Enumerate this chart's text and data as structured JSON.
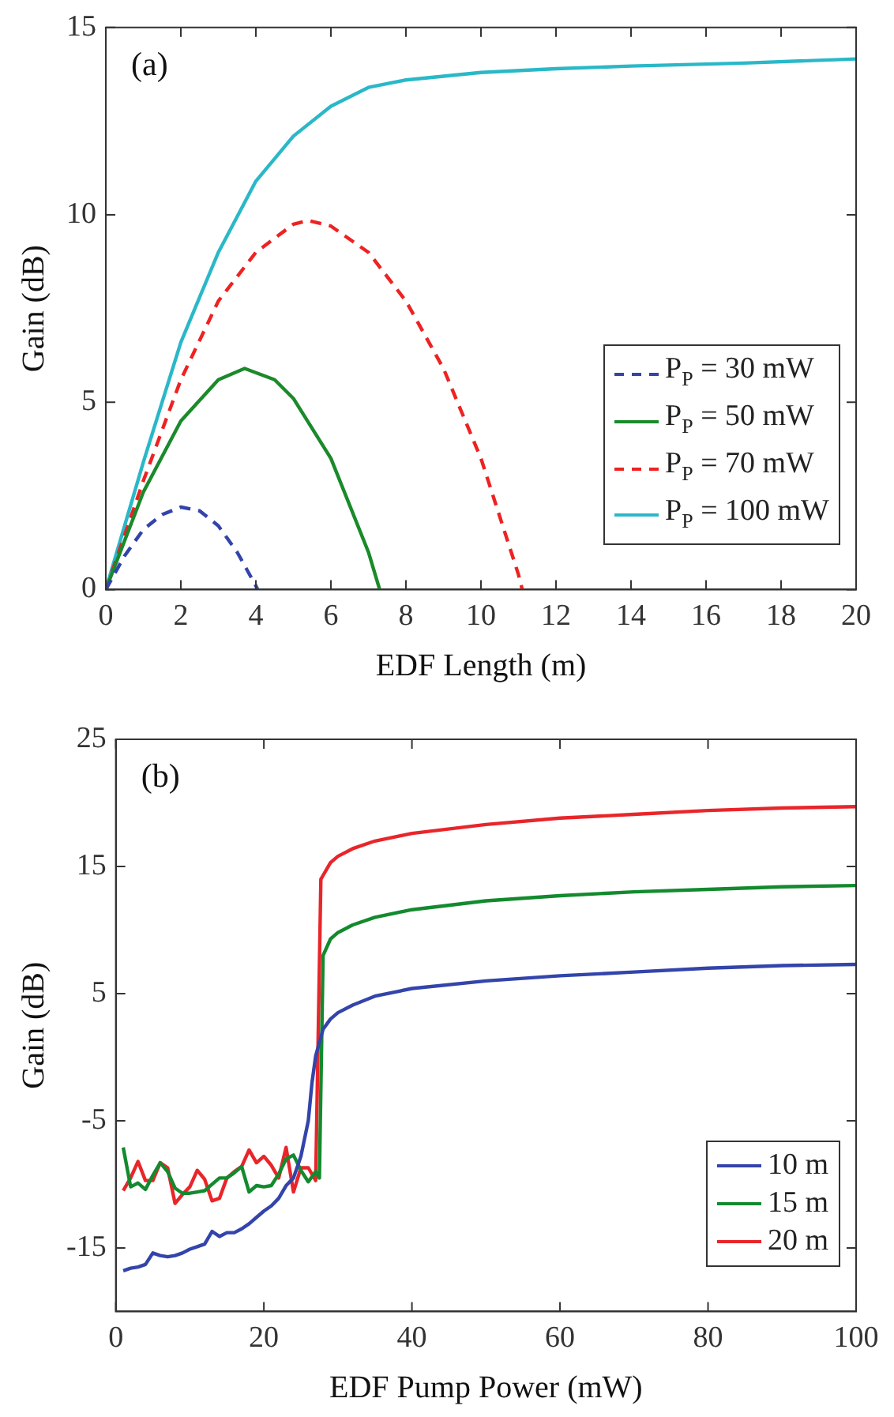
{
  "chart_data": [
    {
      "type": "line",
      "xlabel": "EDF Length (m)",
      "ylabel": "Gain (dB)",
      "annotations": [
        "(a)"
      ],
      "xlim": [
        0,
        20
      ],
      "xticks": [
        0,
        2,
        4,
        6,
        8,
        10,
        12,
        14,
        16,
        18,
        20
      ],
      "ylim": [
        0,
        15
      ],
      "yticks": [
        0,
        5,
        10,
        15
      ],
      "grid": false,
      "legend": "bottom right",
      "marker": "none",
      "series": [
        {
          "name": "P$_{P}$ = 30 mW",
          "color": "#3344aa",
          "line_style": "dashed",
          "x": [
            0,
            0.5,
            1,
            1.5,
            2,
            2.5,
            3,
            3.5,
            4,
            4.05
          ],
          "values": [
            0,
            0.9,
            1.6,
            2.0,
            2.2,
            2.1,
            1.7,
            1.0,
            0.1,
            0
          ]
        },
        {
          "name": "P$_{P}$ = 50 mW",
          "color": "#1a8a2a",
          "line_style": "solid",
          "x": [
            0,
            1,
            2,
            3,
            3.7,
            4.5,
            5,
            6,
            7,
            7.3
          ],
          "values": [
            0,
            2.6,
            4.5,
            5.6,
            5.9,
            5.6,
            5.1,
            3.5,
            1.0,
            0
          ]
        },
        {
          "name": "P$_{P}$ = 70 mW",
          "color": "#ee2222",
          "line_style": "dashed",
          "x": [
            0,
            1,
            2,
            3,
            4,
            5,
            5.4,
            6,
            7,
            8,
            9,
            10,
            11,
            11.1
          ],
          "values": [
            0,
            2.9,
            5.6,
            7.7,
            9.0,
            9.75,
            9.85,
            9.7,
            9.0,
            7.7,
            5.9,
            3.5,
            0.4,
            0
          ]
        },
        {
          "name": "P$_{P}$ = 100 mW",
          "color": "#2ab8c8",
          "line_style": "solid",
          "x": [
            0,
            1,
            2,
            3,
            4,
            5,
            6,
            7,
            8,
            10,
            12,
            14,
            17,
            20
          ],
          "values": [
            0,
            3.4,
            6.6,
            9.0,
            10.9,
            12.1,
            12.9,
            13.4,
            13.6,
            13.8,
            13.9,
            13.97,
            14.05,
            14.16
          ]
        }
      ]
    },
    {
      "type": "line",
      "xlabel": "EDF Pump Power (mW)",
      "ylabel": "Gain (dB)",
      "annotations": [
        "(b)"
      ],
      "xlim": [
        0,
        100
      ],
      "xticks": [
        0,
        20,
        40,
        60,
        80,
        100
      ],
      "ylim": [
        -20,
        25
      ],
      "yticks": [
        -15,
        -5,
        5,
        15,
        25
      ],
      "grid": false,
      "legend": "bottom right",
      "marker": "none",
      "series": [
        {
          "name": "10 m",
          "color": "#3344aa",
          "line_style": "solid",
          "x": [
            1,
            2,
            3,
            4,
            5,
            6,
            7,
            8,
            9,
            10,
            11,
            12,
            13,
            14,
            15,
            16,
            17,
            18,
            19,
            20,
            21,
            22,
            23,
            24,
            25,
            26,
            26.5,
            27,
            28,
            29,
            30,
            32,
            35,
            40,
            50,
            60,
            70,
            80,
            90,
            100
          ],
          "values": [
            -16.8,
            -16.6,
            -16.5,
            -16.3,
            -15.4,
            -15.6,
            -15.7,
            -15.6,
            -15.4,
            -15.1,
            -14.9,
            -14.7,
            -13.7,
            -14.1,
            -13.8,
            -13.8,
            -13.5,
            -13.1,
            -12.6,
            -12.1,
            -11.7,
            -11.1,
            -10.1,
            -9.5,
            -7.8,
            -5.0,
            -2,
            0.1,
            2.2,
            3.0,
            3.5,
            4.1,
            4.8,
            5.4,
            6.0,
            6.4,
            6.7,
            7.0,
            7.2,
            7.3
          ]
        },
        {
          "name": "15 m",
          "color": "#138a2e",
          "line_style": "solid",
          "x": [
            1,
            2,
            3,
            4,
            5,
            6,
            7,
            8,
            9,
            10,
            11,
            12,
            13,
            14,
            15,
            16,
            17,
            18,
            19,
            20,
            21,
            22,
            23,
            24,
            25,
            26,
            27,
            27.5,
            28,
            29,
            30,
            32,
            35,
            40,
            50,
            60,
            70,
            80,
            90,
            100
          ],
          "values": [
            -7.1,
            -10.2,
            -9.9,
            -10.4,
            -9.3,
            -8.3,
            -9.0,
            -10.3,
            -10.7,
            -10.7,
            -10.6,
            -10.5,
            -10.0,
            -9.5,
            -9.5,
            -9.1,
            -8.6,
            -10.6,
            -10.1,
            -10.2,
            -10.1,
            -9.2,
            -8.0,
            -7.7,
            -8.9,
            -9.8,
            -9.0,
            -9.5,
            8.0,
            9.3,
            9.8,
            10.4,
            11.0,
            11.6,
            12.3,
            12.7,
            13.0,
            13.2,
            13.4,
            13.5
          ]
        },
        {
          "name": "20 m",
          "color": "#e8262a",
          "line_style": "solid",
          "x": [
            1,
            2,
            3,
            4,
            5,
            6,
            7,
            8,
            9,
            10,
            11,
            12,
            13,
            14,
            15,
            16,
            17,
            18,
            19,
            20,
            21,
            22,
            23,
            24,
            25,
            26,
            27,
            27.7,
            28,
            29,
            30,
            32,
            35,
            40,
            50,
            60,
            70,
            80,
            90,
            100
          ],
          "values": [
            -10.5,
            -9.5,
            -8.2,
            -9.7,
            -9.7,
            -8.3,
            -8.7,
            -11.5,
            -10.8,
            -10.2,
            -8.9,
            -9.6,
            -11.3,
            -11.1,
            -9.5,
            -9.0,
            -8.6,
            -7.3,
            -8.3,
            -7.8,
            -8.5,
            -9.5,
            -7.1,
            -10.6,
            -8.7,
            -8.7,
            -9.7,
            14.0,
            14.3,
            15.3,
            15.8,
            16.4,
            17.0,
            17.6,
            18.3,
            18.8,
            19.1,
            19.4,
            19.6,
            19.7
          ]
        }
      ]
    }
  ]
}
